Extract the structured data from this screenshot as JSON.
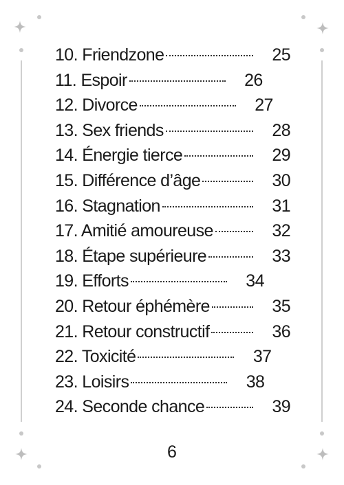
{
  "toc": {
    "entries": [
      {
        "title": "10. Friendzone",
        "page": "25"
      },
      {
        "title": "11. Espoir",
        "page": "26"
      },
      {
        "title": "12. Divorce",
        "page": "27"
      },
      {
        "title": "13. Sex friends",
        "page": "28"
      },
      {
        "title": "14. Énergie tierce",
        "page": "29"
      },
      {
        "title": "15. Différence d’âge",
        "page": "30"
      },
      {
        "title": "16. Stagnation",
        "page": "31"
      },
      {
        "title": "17. Amitié amoureuse",
        "page": "32"
      },
      {
        "title": "18. Étape supérieure",
        "page": "33"
      },
      {
        "title": "19. Efforts",
        "page": "34"
      },
      {
        "title": "20. Retour éphémère",
        "page": "35"
      },
      {
        "title": "21. Retour constructif",
        "page": "36"
      },
      {
        "title": "22. Toxicité",
        "page": "37"
      },
      {
        "title": "23. Loisirs",
        "page": "38"
      },
      {
        "title": "24. Seconde chance",
        "page": "39"
      }
    ]
  },
  "footer": {
    "page_number": "6"
  },
  "decorations": {
    "ornament_color": "#c8c8c8",
    "icons": [
      "sparkle-icon",
      "dot-icon",
      "vertical-rule"
    ]
  }
}
